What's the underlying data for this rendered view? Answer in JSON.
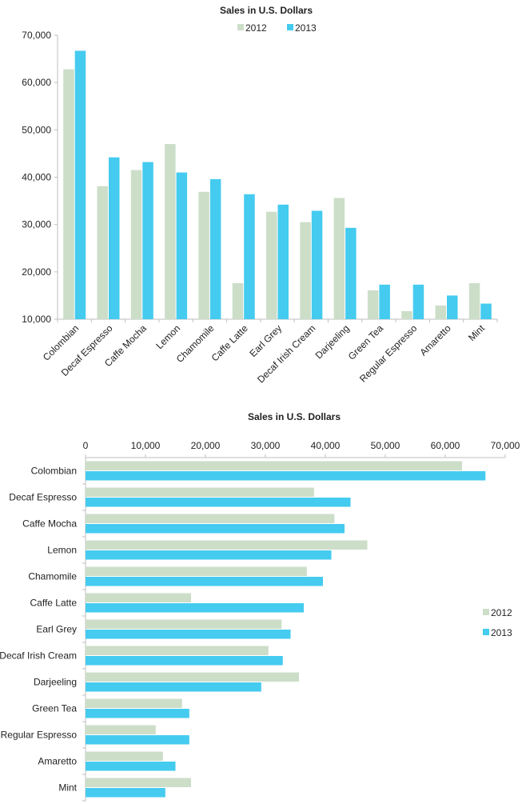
{
  "colors": {
    "s2012": "#ccdec8",
    "s2013": "#44cbef",
    "axis": "#bfbfbf"
  },
  "chart_data": [
    {
      "type": "bar",
      "orientation": "vertical",
      "title": "Sales in U.S. Dollars",
      "categories": [
        "Colombian",
        "Decaf Espresso",
        "Caffe Mocha",
        "Lemon",
        "Chamomile",
        "Caffe Latte",
        "Earl Grey",
        "Decaf Irish Cream",
        "Darjeeling",
        "Green Tea",
        "Regular Espresso",
        "Amaretto",
        "Mint"
      ],
      "series": [
        {
          "name": "2012",
          "values": [
            62800,
            38100,
            41500,
            47000,
            36900,
            17600,
            32700,
            30500,
            35600,
            16100,
            11700,
            12900,
            17600
          ]
        },
        {
          "name": "2013",
          "values": [
            66700,
            44200,
            43200,
            41000,
            39600,
            36400,
            34200,
            32900,
            29300,
            17300,
            17300,
            15000,
            13300
          ]
        }
      ],
      "yticks": [
        "10,000",
        "20,000",
        "30,000",
        "40,000",
        "50,000",
        "60,000",
        "70,000"
      ],
      "ylim": [
        10000,
        70000
      ],
      "legend": "top",
      "grid": false
    },
    {
      "type": "bar",
      "orientation": "horizontal",
      "title": "Sales in U.S. Dollars",
      "categories": [
        "Colombian",
        "Decaf Espresso",
        "Caffe Mocha",
        "Lemon",
        "Chamomile",
        "Caffe Latte",
        "Earl Grey",
        "Decaf Irish Cream",
        "Darjeeling",
        "Green Tea",
        "Regular Espresso",
        "Amaretto",
        "Mint"
      ],
      "series": [
        {
          "name": "2012",
          "values": [
            62800,
            38100,
            41500,
            47000,
            36900,
            17600,
            32700,
            30500,
            35600,
            16100,
            11700,
            12900,
            17600
          ]
        },
        {
          "name": "2013",
          "values": [
            66700,
            44200,
            43200,
            41000,
            39600,
            36400,
            34200,
            32900,
            29300,
            17300,
            17300,
            15000,
            13300
          ]
        }
      ],
      "xticks": [
        "0",
        "10,000",
        "20,000",
        "30,000",
        "40,000",
        "50,000",
        "60,000",
        "70,000"
      ],
      "xlim": [
        0,
        70000
      ],
      "legend": "right",
      "grid": false
    }
  ]
}
